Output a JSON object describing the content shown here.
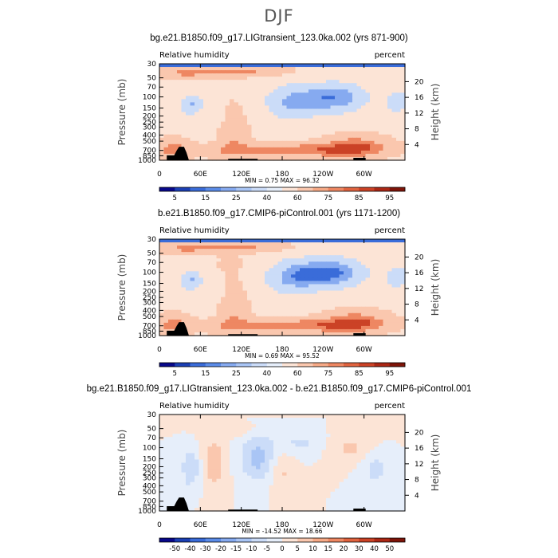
{
  "figure": {
    "season_title": "DJF"
  },
  "panels": [
    {
      "title": "bg.e21.B1850.f09_g17.LIGtransient_123.0ka.002 (yrs 871-900)",
      "left_label": "Relative humidity",
      "right_label": "percent",
      "ylabel": "Pressure (mb)",
      "y2label": "Height (km)",
      "minmax": "MIN =    0.75   MAX =   96.32",
      "cb_labels": [
        "5",
        "15",
        "25",
        "40",
        "60",
        "75",
        "85",
        "95"
      ]
    },
    {
      "title": "b.e21.B1850.f09_g17.CMIP6-piControl.001 (yrs 1171-1200)",
      "left_label": "Relative humidity",
      "right_label": "percent",
      "ylabel": "Pressure (mb)",
      "y2label": "Height (km)",
      "minmax": "MIN =    0.69   MAX =   95.52",
      "cb_labels": [
        "5",
        "15",
        "25",
        "40",
        "60",
        "75",
        "85",
        "95"
      ]
    },
    {
      "title": "bg.e21.B1850.f09_g17.LIGtransient_123.0ka.002 - b.e21.B1850.f09_g17.CMIP6-piControl.001",
      "left_label": "Relative humidity",
      "right_label": "percent",
      "ylabel": "Pressure (mb)",
      "y2label": "Height (km)",
      "minmax": "MIN =  -14.52   MAX =   18.66",
      "cb_labels": [
        "-50",
        "-40",
        "-30",
        "-20",
        "-15",
        "-10",
        "-5",
        "0",
        "5",
        "10",
        "15",
        "20",
        "30",
        "40",
        "50"
      ]
    }
  ],
  "chart_data": [
    {
      "type": "heatmap",
      "title": "bg.e21.B1850.f09_g17.LIGtransient_123.0ka.002 (yrs 871-900)",
      "variable": "Relative humidity",
      "units": "percent",
      "xlabel": "",
      "ylabel": "Pressure (mb)",
      "y2label": "Height (km)",
      "xticks": [
        "0",
        "60E",
        "120E",
        "180",
        "120W",
        "60W"
      ],
      "yticks": [
        1000,
        850,
        700,
        500,
        400,
        300,
        250,
        200,
        150,
        100,
        70,
        50,
        30
      ],
      "y2ticks": [
        4,
        8,
        12,
        16,
        20
      ],
      "min": 0.75,
      "max": 96.32,
      "levels": [
        5,
        15,
        25,
        40,
        60,
        75,
        85,
        95
      ],
      "colors": [
        "#08088a",
        "#1b3fb4",
        "#3a6cd9",
        "#5b8ce8",
        "#86aaf0",
        "#a9c5f5",
        "#cbdcf8",
        "#e6eefa",
        "#fce4d6",
        "#fac7ae",
        "#f6a986",
        "#ee8762",
        "#e0633f",
        "#cb4226",
        "#ab2715",
        "#7e1409"
      ]
    },
    {
      "type": "heatmap",
      "title": "b.e21.B1850.f09_g17.CMIP6-piControl.001 (yrs 1171-1200)",
      "variable": "Relative humidity",
      "units": "percent",
      "xlabel": "",
      "ylabel": "Pressure (mb)",
      "y2label": "Height (km)",
      "xticks": [
        "0",
        "60E",
        "120E",
        "180",
        "120W",
        "60W"
      ],
      "yticks": [
        1000,
        850,
        700,
        500,
        400,
        300,
        250,
        200,
        150,
        100,
        70,
        50,
        30
      ],
      "y2ticks": [
        4,
        8,
        12,
        16,
        20
      ],
      "min": 0.69,
      "max": 95.52,
      "levels": [
        5,
        15,
        25,
        40,
        60,
        75,
        85,
        95
      ],
      "colors": [
        "#08088a",
        "#1b3fb4",
        "#3a6cd9",
        "#5b8ce8",
        "#86aaf0",
        "#a9c5f5",
        "#cbdcf8",
        "#e6eefa",
        "#fce4d6",
        "#fac7ae",
        "#f6a986",
        "#ee8762",
        "#e0633f",
        "#cb4226",
        "#ab2715",
        "#7e1409"
      ]
    },
    {
      "type": "heatmap",
      "title": "bg.e21.B1850.f09_g17.LIGtransient_123.0ka.002 - b.e21.B1850.f09_g17.CMIP6-piControl.001",
      "variable": "Relative humidity",
      "units": "percent",
      "xlabel": "",
      "ylabel": "Pressure (mb)",
      "y2label": "Height (km)",
      "xticks": [
        "0",
        "60E",
        "120E",
        "180",
        "120W",
        "60W"
      ],
      "yticks": [
        1000,
        850,
        700,
        500,
        400,
        300,
        250,
        200,
        150,
        100,
        70,
        50,
        30
      ],
      "y2ticks": [
        4,
        8,
        12,
        16,
        20
      ],
      "min": -14.52,
      "max": 18.66,
      "levels": [
        -50,
        -40,
        -30,
        -20,
        -15,
        -10,
        -5,
        0,
        5,
        10,
        15,
        20,
        30,
        40,
        50
      ],
      "colors": [
        "#08088a",
        "#1b3fb4",
        "#3a6cd9",
        "#5b8ce8",
        "#86aaf0",
        "#a9c5f5",
        "#cbdcf8",
        "#e6eefa",
        "#fce4d6",
        "#fac7ae",
        "#f6a986",
        "#ee8762",
        "#e0633f",
        "#cb4226",
        "#ab2715",
        "#7e1409"
      ]
    }
  ]
}
